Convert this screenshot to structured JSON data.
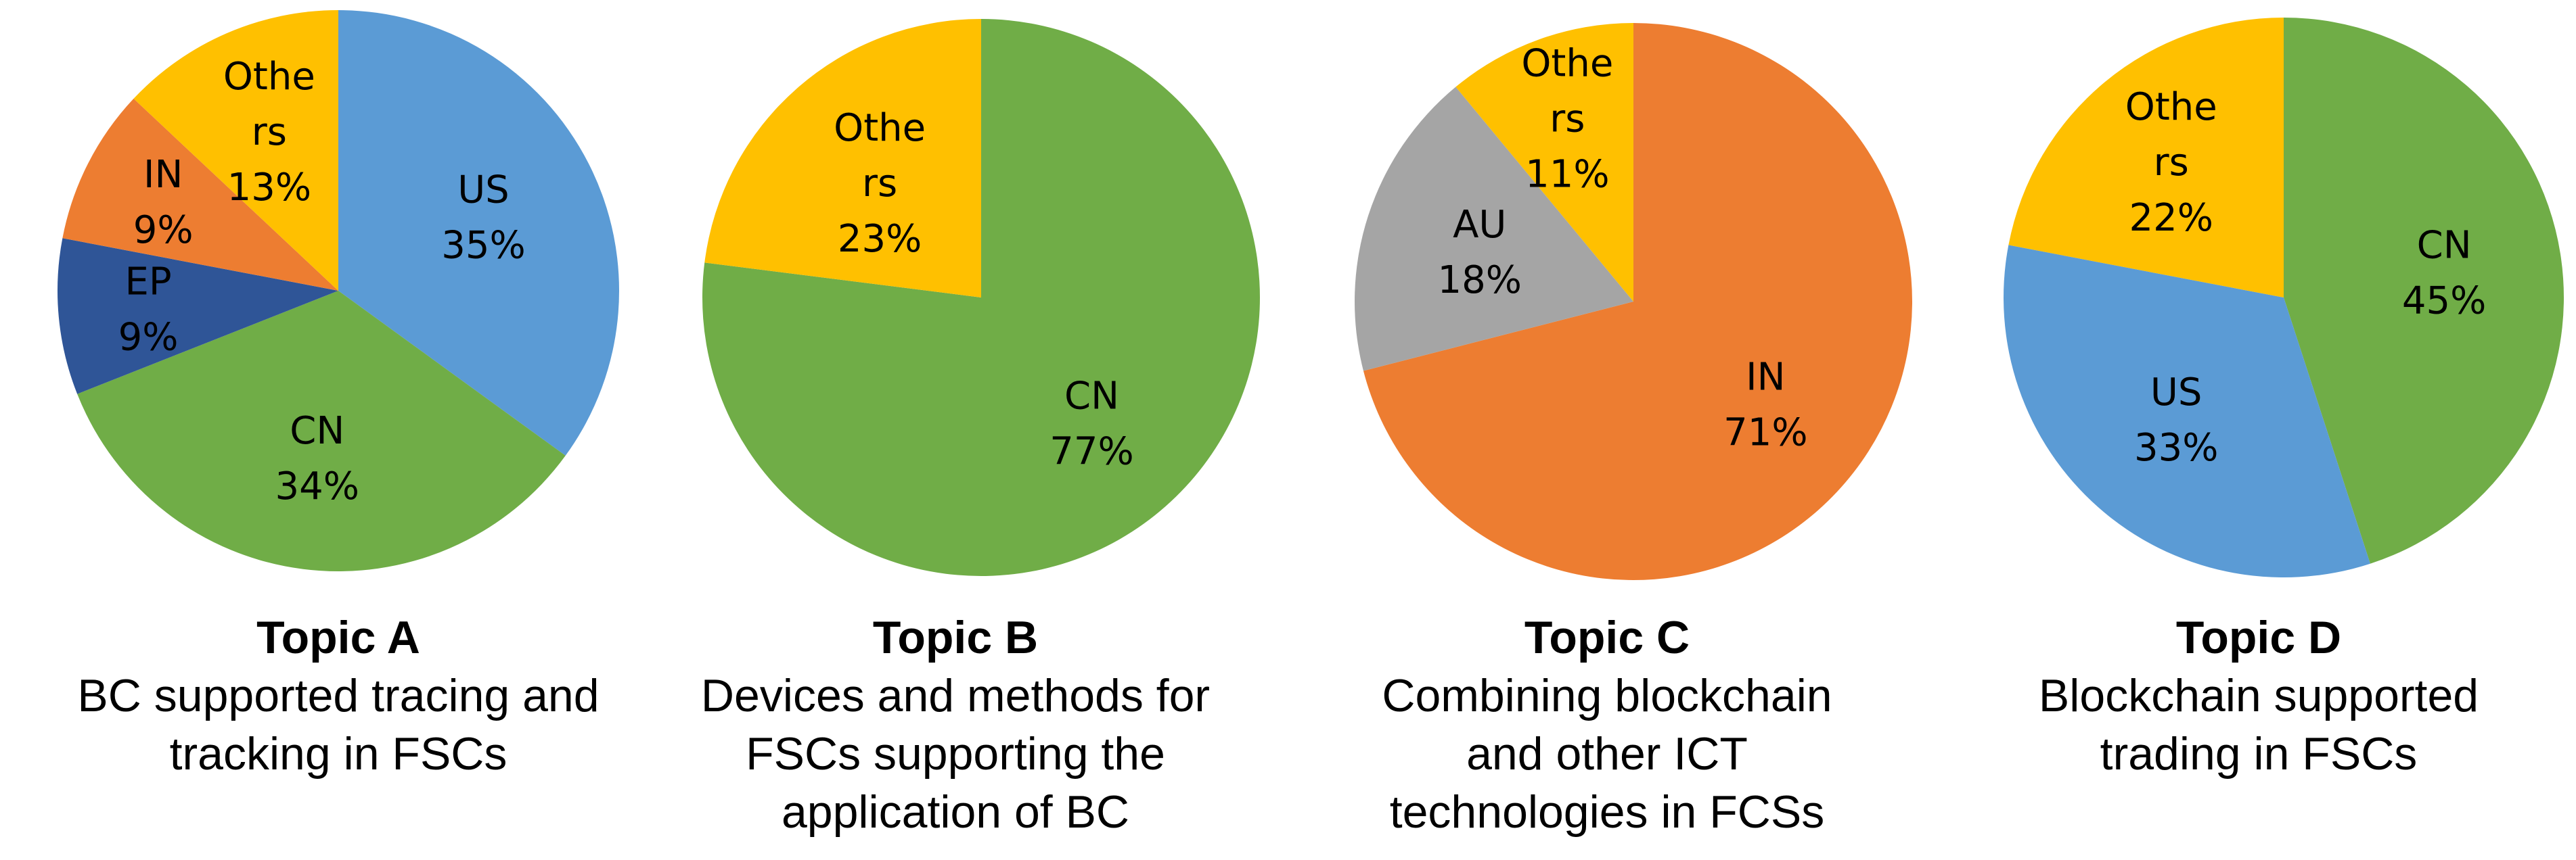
{
  "colors": {
    "US": "#5B9BD5",
    "CN": "#70AD47",
    "EP": "#2F5597",
    "IN": "#ED7D31",
    "AU": "#A5A5A5",
    "Others": "#FFC000"
  },
  "chart_data": [
    {
      "type": "pie",
      "title": "Topic A",
      "subtitle_lines": [
        "BC supported tracing and",
        "tracking in FSCs"
      ],
      "slices": [
        {
          "label_lines": [
            "US",
            "35%"
          ],
          "category": "US",
          "value": 35
        },
        {
          "label_lines": [
            "CN",
            "34%"
          ],
          "category": "CN",
          "value": 34
        },
        {
          "label_lines": [
            "EP",
            "9%"
          ],
          "category": "EP",
          "value": 9
        },
        {
          "label_lines": [
            "IN",
            "9%"
          ],
          "category": "IN",
          "value": 9
        },
        {
          "label_lines": [
            "Othe",
            "rs",
            "13%"
          ],
          "category": "Others",
          "value": 13
        }
      ]
    },
    {
      "type": "pie",
      "title": "Topic B",
      "subtitle_lines": [
        "Devices and methods for",
        "FSCs supporting the",
        "application of BC"
      ],
      "slices": [
        {
          "label_lines": [
            "CN",
            "77%"
          ],
          "category": "CN",
          "value": 77
        },
        {
          "label_lines": [
            "Othe",
            "rs",
            "23%"
          ],
          "category": "Others",
          "value": 23
        }
      ]
    },
    {
      "type": "pie",
      "title": "Topic C",
      "subtitle_lines": [
        "Combining blockchain",
        "and other ICT",
        "technologies in FCSs"
      ],
      "slices": [
        {
          "label_lines": [
            "IN",
            "71%"
          ],
          "category": "IN",
          "value": 71
        },
        {
          "label_lines": [
            "AU",
            "18%"
          ],
          "category": "AU",
          "value": 18
        },
        {
          "label_lines": [
            "Othe",
            "rs",
            "11%"
          ],
          "category": "Others",
          "value": 11
        }
      ]
    },
    {
      "type": "pie",
      "title": "Topic D",
      "subtitle_lines": [
        "Blockchain supported",
        "trading in FSCs"
      ],
      "slices": [
        {
          "label_lines": [
            "CN",
            "45%"
          ],
          "category": "CN",
          "value": 45
        },
        {
          "label_lines": [
            "US",
            "33%"
          ],
          "category": "US",
          "value": 33
        },
        {
          "label_lines": [
            "Othe",
            "rs",
            "22%"
          ],
          "category": "Others",
          "value": 22
        }
      ]
    }
  ]
}
